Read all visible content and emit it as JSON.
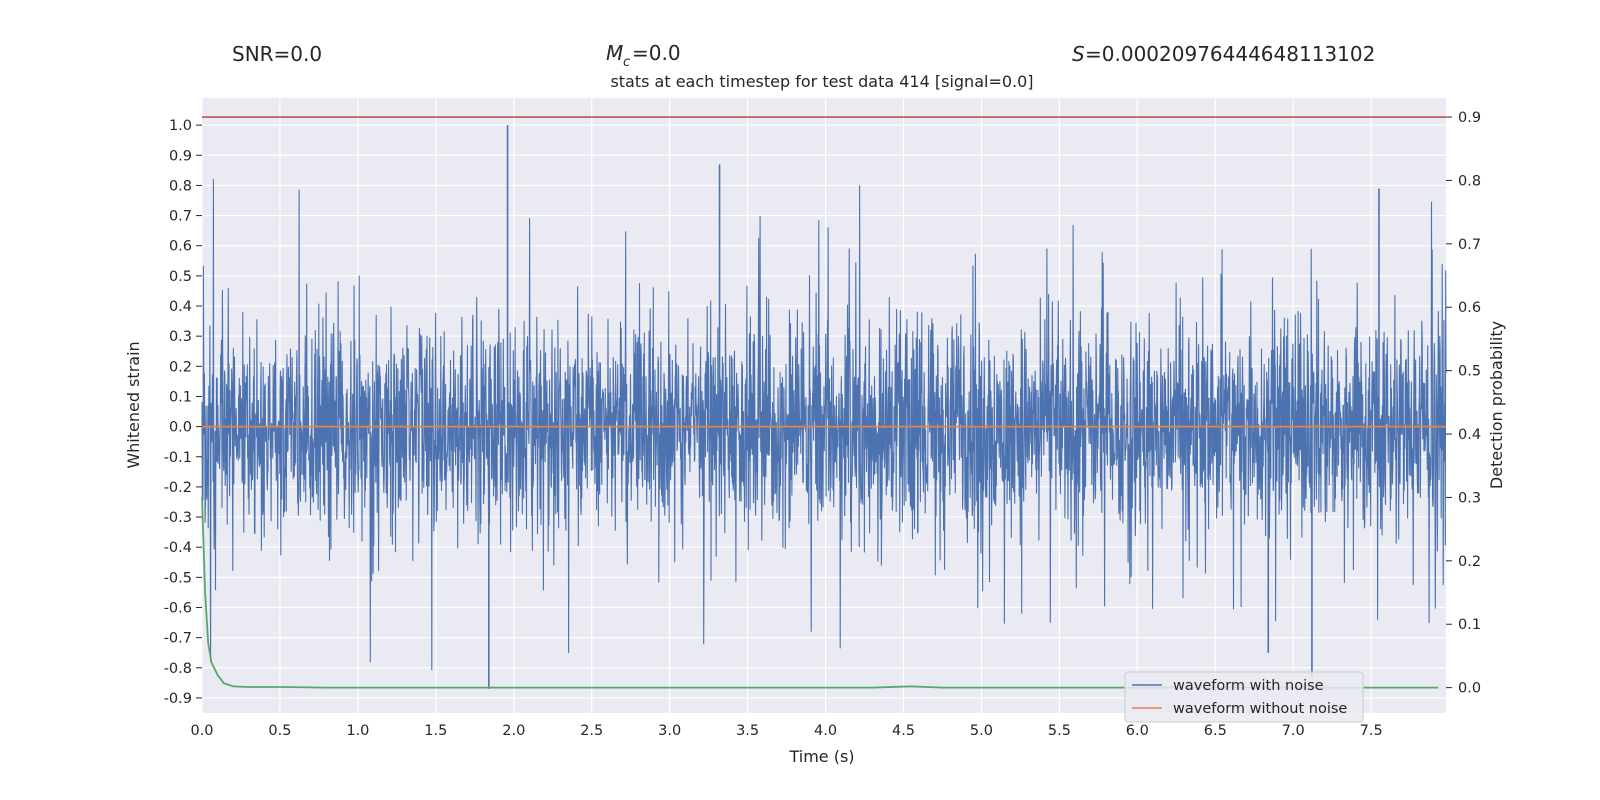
{
  "header": {
    "snr": "SNR=0.0",
    "mc": "=0.0",
    "s": "=0.00020976444648113102"
  },
  "chart_data": {
    "type": "line",
    "title": "stats at each timestep for test data 414 [signal=0.0]",
    "xlabel": "Time (s)",
    "ylabel": "Whitened strain",
    "y2label": "Detection probability",
    "xlim": [
      0.0,
      7.98
    ],
    "ylim": [
      -0.95,
      1.09
    ],
    "y2lim": [
      -0.04,
      0.93
    ],
    "xticks": [
      "0.0",
      "0.5",
      "1.0",
      "1.5",
      "2.0",
      "2.5",
      "3.0",
      "3.5",
      "4.0",
      "4.5",
      "5.0",
      "5.5",
      "6.0",
      "6.5",
      "7.0",
      "7.5"
    ],
    "yticks": [
      "-0.9",
      "-0.8",
      "-0.7",
      "-0.6",
      "-0.5",
      "-0.4",
      "-0.3",
      "-0.2",
      "-0.1",
      "0.0",
      "0.1",
      "0.2",
      "0.3",
      "0.4",
      "0.5",
      "0.6",
      "0.7",
      "0.8",
      "0.9",
      "1.0"
    ],
    "y2ticks": [
      "0.0",
      "0.1",
      "0.2",
      "0.3",
      "0.4",
      "0.5",
      "0.6",
      "0.7",
      "0.8",
      "0.9"
    ],
    "threshold_line": {
      "y2": 0.9,
      "color": "#c44e52"
    },
    "series": [
      {
        "name": "waveform with noise",
        "color": "#4c72b0",
        "axis": "left",
        "envelope": "dense noise, typical amplitude about ±0.3, peaks up to 1.0",
        "notable_peaks": [
          {
            "x": 1.96,
            "y": 1.0
          },
          {
            "x": 3.32,
            "y": 0.87
          },
          {
            "x": 7.55,
            "y": 0.79
          },
          {
            "x": 1.84,
            "y": -0.87
          },
          {
            "x": 7.12,
            "y": -0.83
          },
          {
            "x": 6.84,
            "y": -0.75
          }
        ]
      },
      {
        "name": "waveform without noise",
        "color": "#dd8452",
        "axis": "left",
        "x": [
          0.0,
          7.98
        ],
        "y": [
          0.0,
          0.0
        ]
      },
      {
        "name": "detection probability",
        "color": "#55a868",
        "axis": "right",
        "x": [
          0.0,
          0.02,
          0.04,
          0.06,
          0.1,
          0.14,
          0.2,
          0.3,
          0.5,
          0.8,
          1.5,
          3.0,
          4.3,
          4.55,
          4.75,
          5.5,
          7.0,
          7.93
        ],
        "y": [
          0.3,
          0.15,
          0.07,
          0.04,
          0.02,
          0.007,
          0.002,
          0.001,
          0.001,
          0.0,
          0.0,
          0.0,
          0.0,
          0.002,
          0.0,
          0.0,
          0.0,
          0.0
        ]
      }
    ],
    "legend": {
      "position": "lower-right",
      "entries": [
        "waveform with noise",
        "waveform without noise"
      ]
    }
  }
}
